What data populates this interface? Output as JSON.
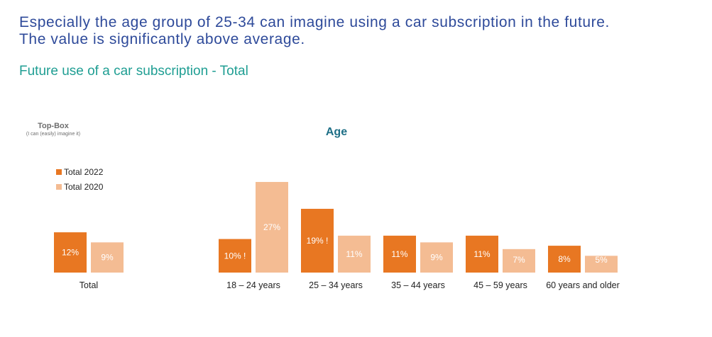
{
  "header": {
    "headline_line1": "Especially the age group of 25-34 can imagine using a car subscription in the future.",
    "headline_line2": "The value is significantly above average.",
    "subtitle": "Future use of a car subscription - Total"
  },
  "chart_data": {
    "type": "bar",
    "categories": [
      "Total",
      "18 – 24 years",
      "25 – 34 years",
      "35 – 44 years",
      "45 – 59 years",
      "60 years and older"
    ],
    "series": [
      {
        "name": "Total 2022",
        "color": "#e87722",
        "values": [
          12,
          10,
          19,
          11,
          11,
          8
        ],
        "labels": [
          "12%",
          "10%",
          "19%",
          "11%",
          "11%",
          "8%"
        ],
        "flags": [
          "",
          "!",
          "!",
          "",
          "",
          ""
        ]
      },
      {
        "name": "Total 2020",
        "color": "#f4bc93",
        "values": [
          9,
          27,
          11,
          9,
          7,
          5
        ],
        "labels": [
          "9%",
          "27%",
          "11%",
          "9%",
          "7%",
          "5%"
        ],
        "flags": [
          "",
          "",
          "",
          "",
          "",
          ""
        ]
      }
    ],
    "ylabel": "Top-Box",
    "ylabel_note": "(I can (easily) imagine it)",
    "group_title": "Age",
    "ylim": [
      0,
      27
    ],
    "grid": false,
    "legend_position": "top-left"
  }
}
